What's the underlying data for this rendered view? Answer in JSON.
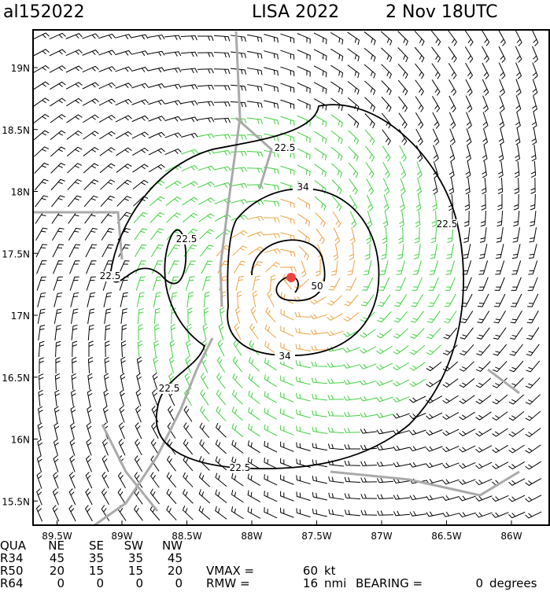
{
  "header": {
    "storm_id": "al152022",
    "storm_name": "LISA 2022",
    "time": "2 Nov 18UTC"
  },
  "lat_ticks": [
    {
      "value": 19,
      "label": "19N"
    },
    {
      "value": 18.5,
      "label": "18.5N"
    },
    {
      "value": 18,
      "label": "18N"
    },
    {
      "value": 17.5,
      "label": "17.5N"
    },
    {
      "value": 17,
      "label": "17N"
    },
    {
      "value": 16.5,
      "label": "16.5N"
    },
    {
      "value": 16,
      "label": "16N"
    },
    {
      "value": 15.5,
      "label": "15.5N"
    }
  ],
  "lon_ticks": [
    {
      "value": -89.5,
      "label": "89.5W"
    },
    {
      "value": -89,
      "label": "89W"
    },
    {
      "value": -88.5,
      "label": "88.5W"
    },
    {
      "value": -88,
      "label": "88W"
    },
    {
      "value": -87.5,
      "label": "87.5W"
    },
    {
      "value": -87,
      "label": "87W"
    },
    {
      "value": -86.5,
      "label": "86.5W"
    },
    {
      "value": -86,
      "label": "86W"
    }
  ],
  "contour_labels": [
    "22.5",
    "22.5",
    "22.5",
    "22.5",
    "22.5",
    "22.5",
    "34",
    "34",
    "50"
  ],
  "table": {
    "header": [
      "QUA",
      "NE",
      "SE",
      "SW",
      "NW"
    ],
    "rows": [
      [
        "R34",
        45,
        35,
        35,
        45
      ],
      [
        "R50",
        20,
        15,
        15,
        20
      ],
      [
        "R64",
        0,
        0,
        0,
        0
      ]
    ]
  },
  "vmax": {
    "label": "VMAX =",
    "value": 60,
    "unit": "kt"
  },
  "rmw": {
    "label": "RMW =",
    "value": 16,
    "unit": "nmi"
  },
  "bearing": {
    "label": "BEARING =",
    "value": 0,
    "unit": "degrees"
  }
}
